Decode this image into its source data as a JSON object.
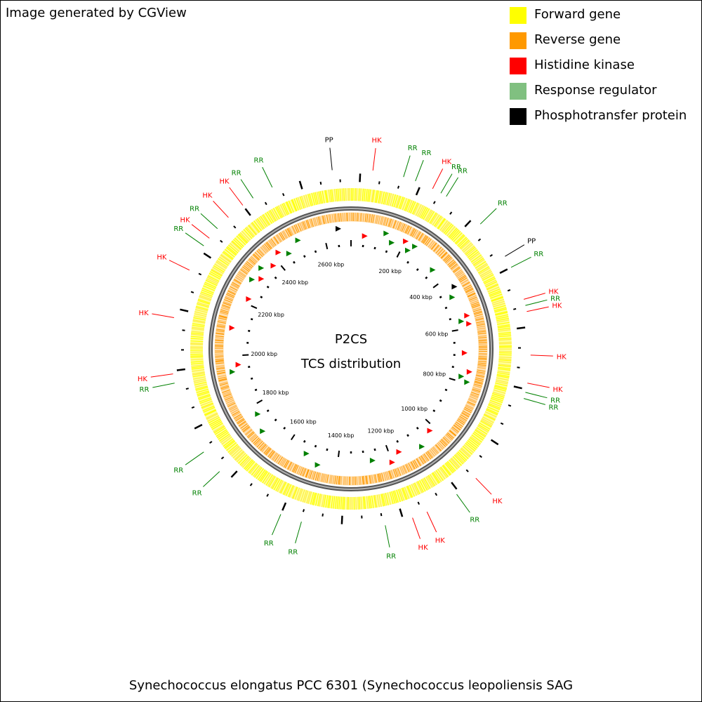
{
  "header": {
    "credit": "Image generated by CGView"
  },
  "legend": [
    {
      "label": "Forward gene",
      "color": "#ffff00"
    },
    {
      "label": "Reverse gene",
      "color": "#ff9900"
    },
    {
      "label": "Histidine kinase",
      "color": "#ff0000"
    },
    {
      "label": "Response regulator",
      "color": "#80c080"
    },
    {
      "label": "Phosphotransfer protein",
      "color": "#000000"
    }
  ],
  "map": {
    "title_line1": "P2CS",
    "title_line2": "TCS distribution",
    "genome_length_kbp": 2700,
    "scale_labels": [
      "200 kbp",
      "400 kbp",
      "600 kbp",
      "800 kbp",
      "1000 kbp",
      "1200 kbp",
      "1400 kbp",
      "1600 kbp",
      "1800 kbp",
      "2000 kbp",
      "2200 kbp",
      "2400 kbp",
      "2600 kbp"
    ],
    "label_colors": {
      "HK": "#ff0000",
      "RR": "#008000",
      "PP": "#000000"
    },
    "features": [
      {
        "type": "PP",
        "angle": -6
      },
      {
        "type": "HK",
        "angle": 7
      },
      {
        "type": "RR",
        "angle": 17
      },
      {
        "type": "RR",
        "angle": 21
      },
      {
        "type": "HK",
        "angle": 27
      },
      {
        "type": "RR",
        "angle": 30
      },
      {
        "type": "RR",
        "angle": 32
      },
      {
        "type": "RR",
        "angle": 46
      },
      {
        "type": "PP",
        "angle": 59
      },
      {
        "type": "RR",
        "angle": 63
      },
      {
        "type": "HK",
        "angle": 74
      },
      {
        "type": "RR",
        "angle": 76
      },
      {
        "type": "HK",
        "angle": 78
      },
      {
        "type": "HK",
        "angle": 92
      },
      {
        "type": "HK",
        "angle": 101
      },
      {
        "type": "RR",
        "angle": 104
      },
      {
        "type": "RR",
        "angle": 106
      },
      {
        "type": "HK",
        "angle": 136
      },
      {
        "type": "RR",
        "angle": 144
      },
      {
        "type": "HK",
        "angle": 155
      },
      {
        "type": "HK",
        "angle": 160
      },
      {
        "type": "RR",
        "angle": 169
      },
      {
        "type": "RR",
        "angle": 196
      },
      {
        "type": "RR",
        "angle": 203
      },
      {
        "type": "RR",
        "angle": 227
      },
      {
        "type": "RR",
        "angle": 235
      },
      {
        "type": "RR",
        "angle": 259
      },
      {
        "type": "HK",
        "angle": 262
      },
      {
        "type": "HK",
        "angle": 280
      },
      {
        "type": "HK",
        "angle": 296
      },
      {
        "type": "RR",
        "angle": 305
      },
      {
        "type": "HK",
        "angle": 308
      },
      {
        "type": "RR",
        "angle": 312
      },
      {
        "type": "HK",
        "angle": 317
      },
      {
        "type": "HK",
        "angle": 323
      },
      {
        "type": "RR",
        "angle": 327
      },
      {
        "type": "RR",
        "angle": 334
      }
    ]
  },
  "footer": {
    "text": "Synechococcus elongatus PCC 6301 (Synechococcus leopoliensis SAG"
  }
}
